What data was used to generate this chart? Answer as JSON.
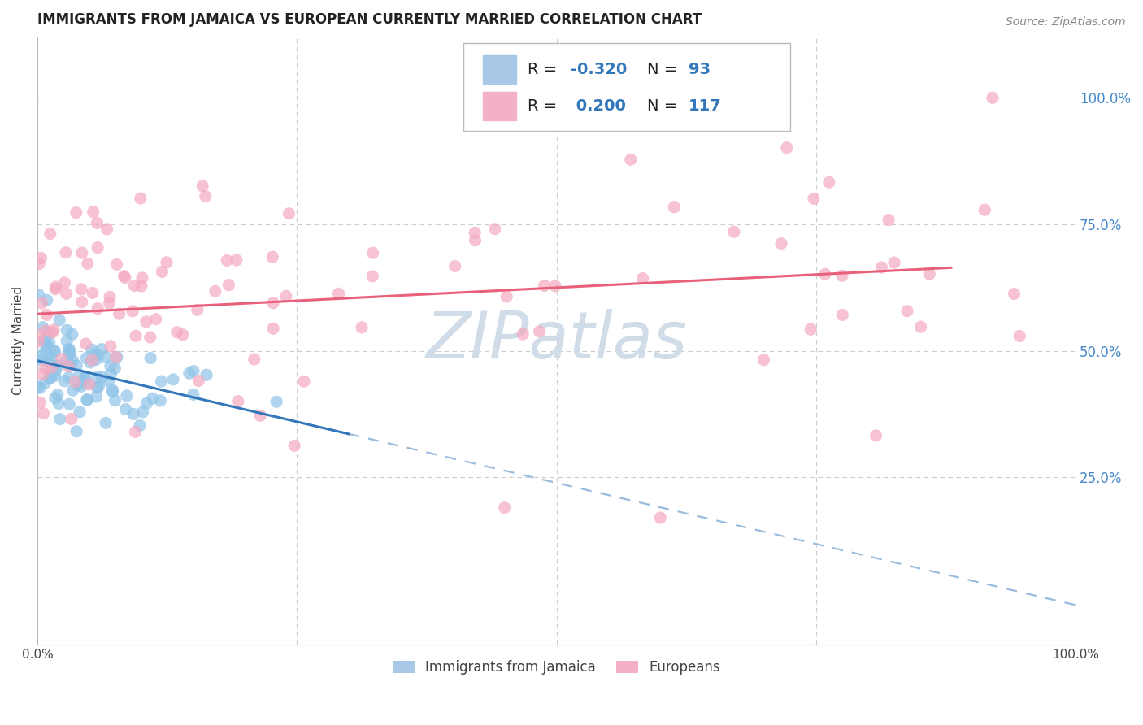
{
  "title": "IMMIGRANTS FROM JAMAICA VS EUROPEAN CURRENTLY MARRIED CORRELATION CHART",
  "source": "Source: ZipAtlas.com",
  "ylabel": "Currently Married",
  "scatter_jamaica_color": "#90c4e8",
  "scatter_european_color": "#f4aac0",
  "line_jamaica_color": "#3377bb",
  "line_european_color": "#e8607a",
  "line_jamaica_dashed_color": "#99bbdd",
  "background_color": "#ffffff",
  "grid_color": "#cccccc",
  "watermark_color": "#d0dce8",
  "ytick_color": "#4488cc",
  "title_color": "#222222",
  "source_color": "#888888",
  "legend_box_color": "#dddddd",
  "legend_r_color": "#222222",
  "legend_val_color": "#3377bb",
  "legend_n_color": "#3377bb",
  "r_jam": -0.32,
  "n_jam": 93,
  "r_eur": 0.2,
  "n_eur": 117,
  "xlim": [
    0.0,
    1.0
  ],
  "ylim": [
    -0.08,
    1.12
  ],
  "yticks": [
    0.25,
    0.5,
    0.75,
    1.0
  ],
  "ytick_labels": [
    "25.0%",
    "50.0%",
    "75.0%",
    "100.0%"
  ],
  "xtick_labels": [
    "0.0%",
    "",
    "",
    "",
    "100.0%"
  ],
  "xticks": [
    0.0,
    0.25,
    0.5,
    0.75,
    1.0
  ],
  "grid_yticks": [
    0.25,
    0.5,
    0.75,
    1.0
  ],
  "grid_xticks": [
    0.25,
    0.5,
    0.75
  ],
  "jam_line_x_solid_end": 0.3,
  "eur_line_x_end": 0.88,
  "scatter_size": 120,
  "scatter_alpha": 0.7
}
